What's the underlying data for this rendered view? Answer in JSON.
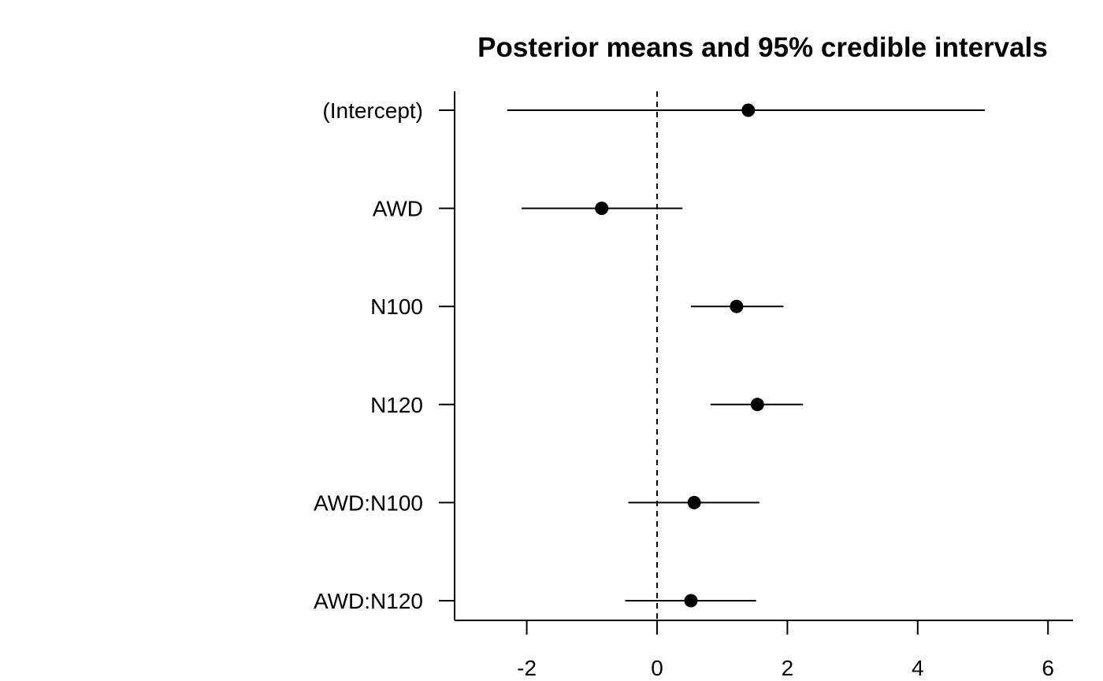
{
  "chart_data": {
    "type": "forest",
    "title": "Posterior means and 95% credible intervals",
    "xlabel": "",
    "ylabel": "",
    "categories": [
      "(Intercept)",
      "AWD",
      "N100",
      "N120",
      "AWD:N100",
      "AWD:N120"
    ],
    "series": [
      {
        "mean": [
          1.4,
          -0.85,
          1.22,
          1.54,
          0.57,
          0.52
        ],
        "lower": [
          -2.3,
          -2.08,
          0.52,
          0.82,
          -0.44,
          -0.49
        ],
        "upper": [
          5.03,
          0.39,
          1.94,
          2.24,
          1.57,
          1.52
        ]
      }
    ],
    "xlim": [
      -3.1,
      6.4
    ],
    "xticks": [
      -2,
      0,
      2,
      4,
      6
    ],
    "xtick_labels": [
      "-2",
      "0",
      "2",
      "4",
      "6"
    ],
    "reference_line": 0,
    "reference_line_style": "dashed",
    "grid": false,
    "colors": {
      "line": "#000000",
      "point": "#000000",
      "background": "#ffffff"
    }
  }
}
